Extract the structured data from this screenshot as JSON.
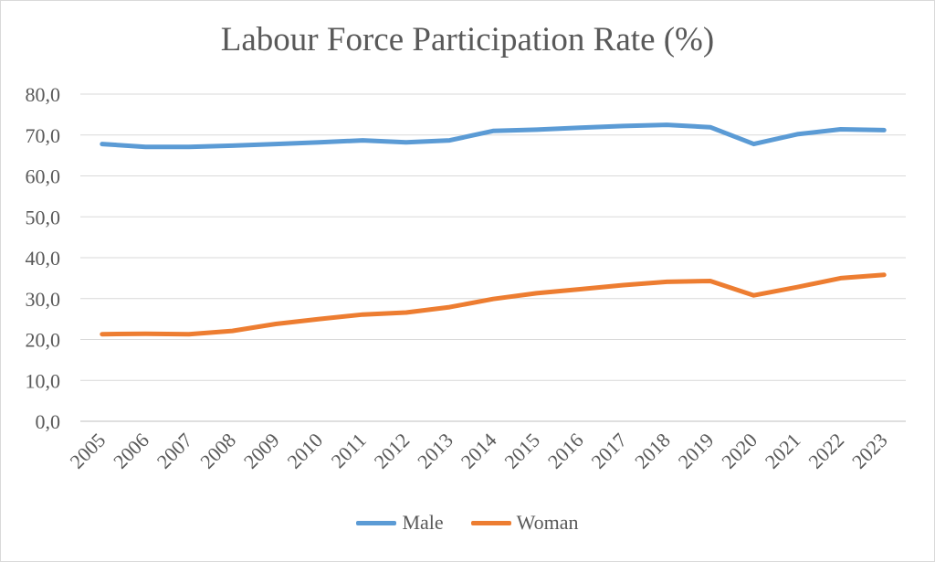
{
  "chart_data": {
    "type": "line",
    "title": "Labour Force Participation Rate (%)",
    "xlabel": "",
    "ylabel": "",
    "categories": [
      "2005",
      "2006",
      "2007",
      "2008",
      "2009",
      "2010",
      "2011",
      "2012",
      "2013",
      "2014",
      "2015",
      "2016",
      "2017",
      "2018",
      "2019",
      "2020",
      "2021",
      "2022",
      "2023"
    ],
    "ylim": [
      0,
      80
    ],
    "yticks": [
      "0,0",
      "10,0",
      "20,0",
      "30,0",
      "40,0",
      "50,0",
      "60,0",
      "70,0",
      "80,0"
    ],
    "grid": true,
    "legend_position": "bottom",
    "series": [
      {
        "name": "Male",
        "color": "#5b9bd5",
        "values": [
          67.8,
          67.1,
          67.1,
          67.4,
          67.8,
          68.2,
          68.7,
          68.2,
          68.7,
          71.0,
          71.3,
          71.8,
          72.2,
          72.5,
          71.9,
          67.8,
          70.2,
          71.4,
          71.2
        ]
      },
      {
        "name": "Woman",
        "color": "#ed7d31",
        "values": [
          21.3,
          21.4,
          21.3,
          22.1,
          23.8,
          25.0,
          26.1,
          26.6,
          27.9,
          29.9,
          31.3,
          32.3,
          33.3,
          34.1,
          34.3,
          30.8,
          32.8,
          35.0,
          35.8
        ]
      }
    ]
  }
}
